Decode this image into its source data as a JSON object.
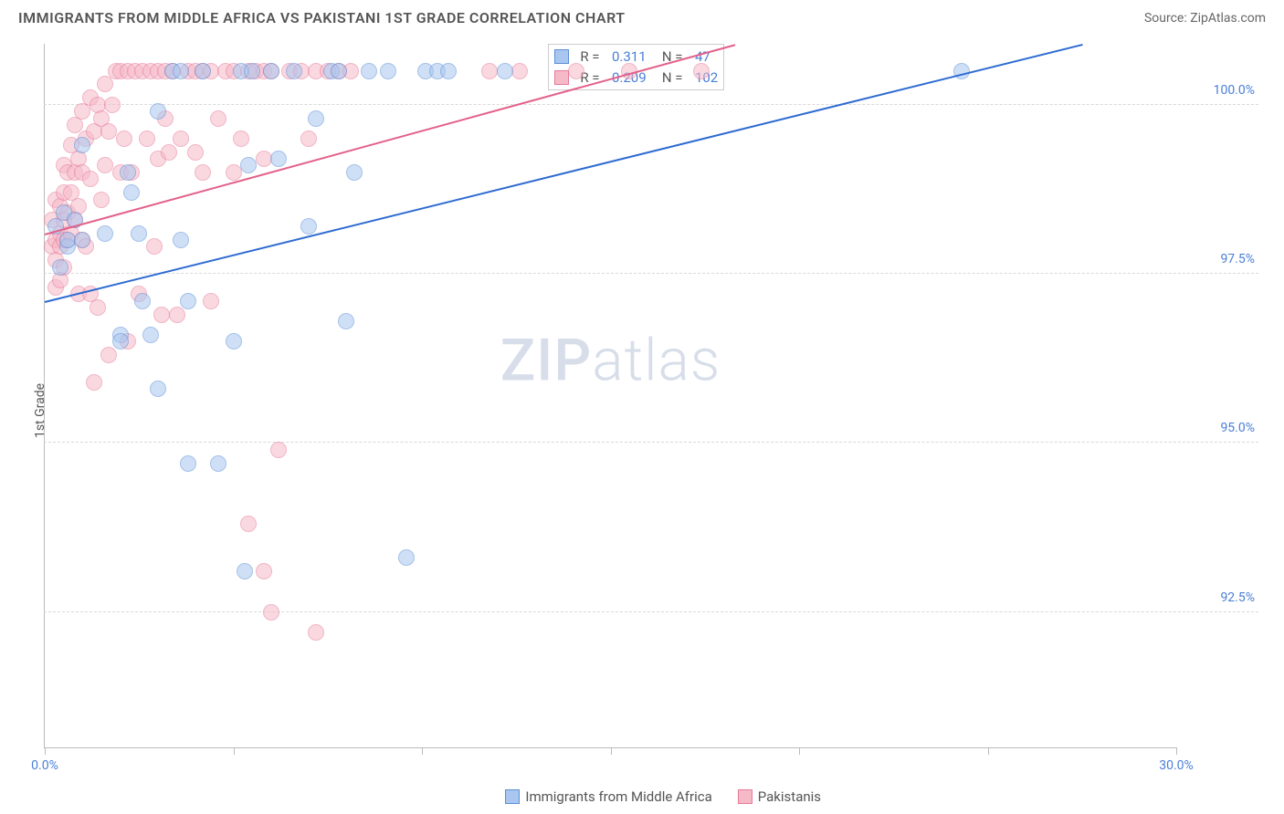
{
  "header": {
    "title": "IMMIGRANTS FROM MIDDLE AFRICA VS PAKISTANI 1ST GRADE CORRELATION CHART",
    "source_prefix": "Source: ",
    "source_name": "ZipAtlas.com"
  },
  "watermark": {
    "part1": "ZIP",
    "part2": "atlas"
  },
  "axes": {
    "ylabel": "1st Grade",
    "xlim": [
      0,
      30
    ],
    "ylim": [
      90.5,
      100.9
    ],
    "yticks": [
      92.5,
      95.0,
      97.5,
      100.0
    ],
    "ytick_labels": [
      "92.5%",
      "95.0%",
      "97.5%",
      "100.0%"
    ],
    "xticks": [
      0,
      5,
      10,
      15,
      20,
      25,
      30
    ],
    "xtick_labels_shown": {
      "0": "0.0%",
      "30": "30.0%"
    },
    "grid_color": "#d8d8d8",
    "axis_color": "#bbbbbb",
    "tick_label_color": "#4a7fd6",
    "label_fontsize": 14
  },
  "series": {
    "a": {
      "name": "Immigrants from Middle Africa",
      "fill_color": "#a8c6f0",
      "stroke_color": "#5b8fd6",
      "trend_color": "#2e6bd1",
      "marker": "circle",
      "marker_size": 18,
      "R": "0.311",
      "N": "47",
      "trend": {
        "x1": 0,
        "y1": 97.1,
        "x2": 27.5,
        "y2": 100.9
      },
      "points": [
        [
          0.3,
          98.2
        ],
        [
          0.4,
          97.6
        ],
        [
          0.5,
          98.4
        ],
        [
          0.6,
          97.9
        ],
        [
          0.6,
          98.0
        ],
        [
          0.8,
          98.3
        ],
        [
          1.0,
          99.4
        ],
        [
          1.0,
          98.0
        ],
        [
          1.6,
          98.1
        ],
        [
          2.0,
          96.6
        ],
        [
          2.0,
          96.5
        ],
        [
          2.2,
          99.0
        ],
        [
          2.3,
          98.7
        ],
        [
          2.5,
          98.1
        ],
        [
          2.6,
          97.1
        ],
        [
          2.8,
          96.6
        ],
        [
          3.0,
          99.9
        ],
        [
          3.0,
          95.8
        ],
        [
          3.4,
          100.5
        ],
        [
          3.6,
          100.5
        ],
        [
          3.6,
          98.0
        ],
        [
          3.8,
          97.1
        ],
        [
          3.8,
          94.7
        ],
        [
          4.2,
          100.5
        ],
        [
          4.6,
          94.7
        ],
        [
          5.0,
          96.5
        ],
        [
          5.2,
          100.5
        ],
        [
          5.3,
          93.1
        ],
        [
          5.4,
          99.1
        ],
        [
          5.5,
          100.5
        ],
        [
          6.0,
          100.5
        ],
        [
          6.2,
          99.2
        ],
        [
          6.6,
          100.5
        ],
        [
          7.0,
          98.2
        ],
        [
          7.2,
          99.8
        ],
        [
          7.6,
          100.5
        ],
        [
          7.8,
          100.5
        ],
        [
          8.0,
          96.8
        ],
        [
          8.2,
          99.0
        ],
        [
          8.6,
          100.5
        ],
        [
          9.1,
          100.5
        ],
        [
          9.6,
          93.3
        ],
        [
          10.1,
          100.5
        ],
        [
          10.4,
          100.5
        ],
        [
          10.7,
          100.5
        ],
        [
          12.2,
          100.5
        ],
        [
          24.3,
          100.5
        ]
      ]
    },
    "b": {
      "name": "Pakistanis",
      "fill_color": "#f6b9c8",
      "stroke_color": "#e67a99",
      "trend_color": "#e36089",
      "marker": "circle",
      "marker_size": 18,
      "R": "0.209",
      "N": "102",
      "trend": {
        "x1": 0,
        "y1": 98.1,
        "x2": 18.3,
        "y2": 100.9
      },
      "points": [
        [
          0.2,
          98.3
        ],
        [
          0.2,
          97.9
        ],
        [
          0.3,
          98.6
        ],
        [
          0.3,
          98.0
        ],
        [
          0.3,
          97.7
        ],
        [
          0.3,
          97.3
        ],
        [
          0.4,
          98.5
        ],
        [
          0.4,
          98.1
        ],
        [
          0.4,
          97.9
        ],
        [
          0.4,
          97.4
        ],
        [
          0.5,
          99.1
        ],
        [
          0.5,
          98.7
        ],
        [
          0.5,
          98.3
        ],
        [
          0.5,
          98.0
        ],
        [
          0.5,
          97.6
        ],
        [
          0.6,
          99.0
        ],
        [
          0.6,
          98.4
        ],
        [
          0.6,
          98.0
        ],
        [
          0.7,
          99.4
        ],
        [
          0.7,
          98.7
        ],
        [
          0.7,
          98.1
        ],
        [
          0.8,
          99.7
        ],
        [
          0.8,
          99.0
        ],
        [
          0.8,
          98.3
        ],
        [
          0.9,
          99.2
        ],
        [
          0.9,
          98.5
        ],
        [
          0.9,
          97.2
        ],
        [
          1.0,
          99.9
        ],
        [
          1.0,
          99.0
        ],
        [
          1.0,
          98.0
        ],
        [
          1.1,
          99.5
        ],
        [
          1.1,
          97.9
        ],
        [
          1.2,
          100.1
        ],
        [
          1.2,
          98.9
        ],
        [
          1.2,
          97.2
        ],
        [
          1.3,
          99.6
        ],
        [
          1.3,
          95.9
        ],
        [
          1.4,
          100.0
        ],
        [
          1.4,
          97.0
        ],
        [
          1.5,
          99.8
        ],
        [
          1.5,
          98.6
        ],
        [
          1.6,
          100.3
        ],
        [
          1.6,
          99.1
        ],
        [
          1.7,
          99.6
        ],
        [
          1.7,
          96.3
        ],
        [
          1.8,
          100.0
        ],
        [
          1.9,
          100.5
        ],
        [
          2.0,
          100.5
        ],
        [
          2.0,
          99.0
        ],
        [
          2.1,
          99.5
        ],
        [
          2.2,
          100.5
        ],
        [
          2.2,
          96.5
        ],
        [
          2.3,
          99.0
        ],
        [
          2.4,
          100.5
        ],
        [
          2.5,
          97.2
        ],
        [
          2.6,
          100.5
        ],
        [
          2.7,
          99.5
        ],
        [
          2.8,
          100.5
        ],
        [
          2.9,
          97.9
        ],
        [
          3.0,
          100.5
        ],
        [
          3.0,
          99.2
        ],
        [
          3.1,
          96.9
        ],
        [
          3.2,
          100.5
        ],
        [
          3.2,
          99.8
        ],
        [
          3.3,
          99.3
        ],
        [
          3.4,
          100.5
        ],
        [
          3.5,
          96.9
        ],
        [
          3.6,
          99.5
        ],
        [
          3.8,
          100.5
        ],
        [
          4.0,
          100.5
        ],
        [
          4.0,
          99.3
        ],
        [
          4.2,
          100.5
        ],
        [
          4.2,
          99.0
        ],
        [
          4.4,
          100.5
        ],
        [
          4.4,
          97.1
        ],
        [
          4.6,
          99.8
        ],
        [
          4.8,
          100.5
        ],
        [
          5.0,
          100.5
        ],
        [
          5.0,
          99.0
        ],
        [
          5.2,
          99.5
        ],
        [
          5.4,
          100.5
        ],
        [
          5.4,
          93.8
        ],
        [
          5.6,
          100.5
        ],
        [
          5.8,
          100.5
        ],
        [
          5.8,
          99.2
        ],
        [
          5.8,
          93.1
        ],
        [
          6.0,
          100.5
        ],
        [
          6.0,
          92.5
        ],
        [
          6.2,
          94.9
        ],
        [
          6.5,
          100.5
        ],
        [
          6.8,
          100.5
        ],
        [
          7.0,
          99.5
        ],
        [
          7.2,
          100.5
        ],
        [
          7.2,
          92.2
        ],
        [
          7.5,
          100.5
        ],
        [
          7.8,
          100.5
        ],
        [
          8.1,
          100.5
        ],
        [
          11.8,
          100.5
        ],
        [
          12.6,
          100.5
        ],
        [
          14.1,
          100.5
        ],
        [
          15.5,
          100.5
        ],
        [
          17.4,
          100.5
        ]
      ]
    }
  },
  "legend_box": {
    "rows": [
      {
        "swatch": "a",
        "R_label": "R =",
        "R": "0.311",
        "N_label": "N =",
        "N": "47"
      },
      {
        "swatch": "b",
        "R_label": "R =",
        "R": "0.209",
        "N_label": "N =",
        "N": "102"
      }
    ]
  },
  "bottom_legend": {
    "items": [
      {
        "swatch": "a",
        "label": "Immigrants from Middle Africa"
      },
      {
        "swatch": "b",
        "label": "Pakistanis"
      }
    ]
  }
}
